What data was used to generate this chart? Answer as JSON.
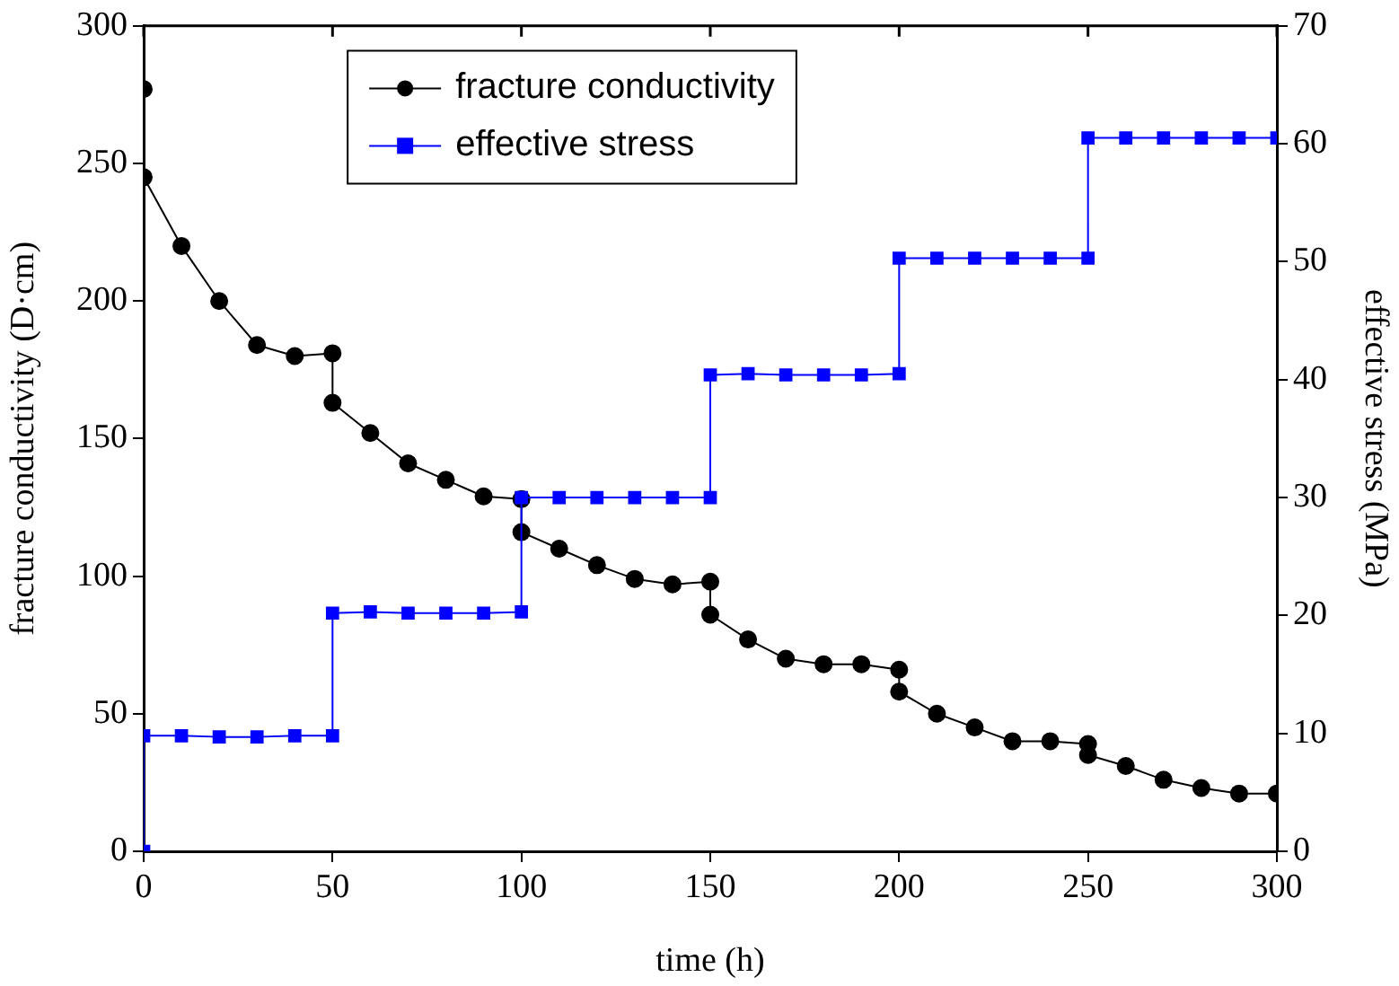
{
  "chart_data": {
    "type": "line",
    "xlabel": "time (h)",
    "ylabel": "fracture conductivity (D·cm)",
    "y2label": "effective stress (MPa)",
    "xlim": [
      0,
      300
    ],
    "xticks": [
      0,
      50,
      100,
      150,
      200,
      250,
      300
    ],
    "ylim": [
      0,
      300
    ],
    "yticks": [
      0,
      50,
      100,
      150,
      200,
      250,
      300
    ],
    "y2lim": [
      0,
      70
    ],
    "y2ticks": [
      0,
      10,
      20,
      30,
      40,
      50,
      60,
      70
    ],
    "grid": false,
    "legend": "top left",
    "line_style": "solid",
    "series": [
      {
        "name": "fracture conductivity",
        "color": "#000000",
        "marker": "circle",
        "x": [
          0,
          0,
          10,
          20,
          30,
          40,
          50,
          50,
          60,
          70,
          80,
          90,
          100,
          100,
          110,
          120,
          130,
          140,
          150,
          150,
          160,
          170,
          180,
          190,
          200,
          200,
          210,
          220,
          230,
          240,
          250,
          250,
          260,
          270,
          280,
          290,
          300
        ],
        "values": [
          277,
          245,
          220,
          200,
          184,
          180,
          181,
          163,
          152,
          141,
          135,
          129,
          128,
          116,
          110,
          104,
          99,
          97,
          98,
          86,
          77,
          70,
          68,
          68,
          66,
          58,
          50,
          45,
          40,
          40,
          39,
          35,
          31,
          26,
          23,
          21,
          21
        ]
      },
      {
        "name": "effective stress",
        "color": "#0000ff",
        "marker": "square",
        "axis": "y2",
        "x": [
          0,
          0,
          10,
          20,
          30,
          40,
          50,
          50,
          60,
          70,
          80,
          90,
          100,
          100,
          110,
          120,
          130,
          140,
          150,
          150,
          160,
          170,
          180,
          190,
          200,
          200,
          210,
          220,
          230,
          240,
          250,
          250,
          260,
          270,
          280,
          290,
          300
        ],
        "values": [
          0,
          9.8,
          9.8,
          9.7,
          9.7,
          9.8,
          9.8,
          20.2,
          20.3,
          20.2,
          20.2,
          20.2,
          20.3,
          30,
          30,
          30,
          30,
          30,
          30,
          40.4,
          40.5,
          40.4,
          40.4,
          40.4,
          40.5,
          50.3,
          50.3,
          50.3,
          50.3,
          50.3,
          50.3,
          60.5,
          60.5,
          60.5,
          60.5,
          60.5,
          60.5
        ]
      }
    ]
  }
}
